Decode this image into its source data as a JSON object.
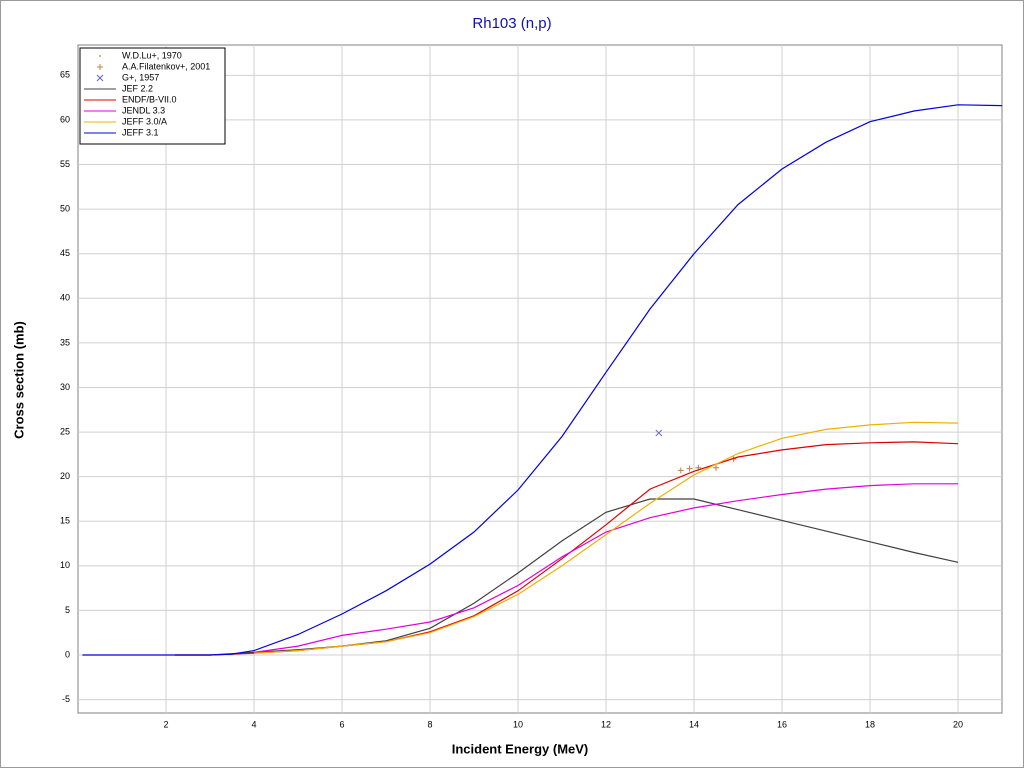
{
  "chart_data": {
    "type": "line",
    "title": "Rh103 (n,p)",
    "xlabel": "Incident Energy (MeV)",
    "ylabel": "Cross section (mb)",
    "xlim": [
      0,
      21
    ],
    "ylim": [
      -6.5,
      68.4
    ],
    "xticks": [
      2,
      4,
      6,
      8,
      10,
      12,
      14,
      16,
      18,
      20
    ],
    "yticks": [
      -5,
      0,
      5,
      10,
      15,
      20,
      25,
      30,
      35,
      40,
      45,
      50,
      55,
      60,
      65
    ],
    "grid": true,
    "legend": "upper left",
    "series": [
      {
        "name": "W.D.Lu+, 1970",
        "color": "#c8a070",
        "marker": "dot",
        "x": [],
        "values": []
      },
      {
        "name": "A.A.Filatenkov+, 2001",
        "color": "#c08040",
        "marker": "plus",
        "x": [
          13.7,
          13.9,
          14.1,
          14.5,
          14.9
        ],
        "values": [
          20.7,
          20.9,
          21.0,
          21.0,
          22.0
        ]
      },
      {
        "name": "G+, 1957",
        "color": "#6060c0",
        "marker": "cross",
        "x": [
          13.2
        ],
        "values": [
          24.9
        ]
      },
      {
        "name": "JEF 2.2",
        "color": "#404040",
        "x": [
          2.2,
          3,
          4,
          5,
          6,
          7,
          8,
          9,
          10,
          11,
          12,
          13,
          14,
          15,
          16,
          17,
          18,
          19,
          20
        ],
        "values": [
          0,
          0,
          0.3,
          0.6,
          1.0,
          1.6,
          3.0,
          5.8,
          9.2,
          12.8,
          16.0,
          17.5,
          17.5,
          16.3,
          15.1,
          13.9,
          12.7,
          11.5,
          10.4
        ]
      },
      {
        "name": "ENDF/B-VII.0",
        "color": "#e00000",
        "x": [
          2.2,
          3,
          4,
          5,
          6,
          7,
          8,
          9,
          10,
          11,
          12,
          13,
          14,
          15,
          16,
          17,
          18,
          19,
          20
        ],
        "values": [
          0,
          0,
          0.2,
          0.5,
          1.0,
          1.5,
          2.6,
          4.4,
          7.2,
          10.8,
          14.6,
          18.6,
          20.6,
          22.2,
          23.0,
          23.6,
          23.8,
          23.9,
          23.7
        ]
      },
      {
        "name": "JENDL 3.3",
        "color": "#e000e0",
        "x": [
          4,
          5,
          6,
          7,
          8,
          9,
          10,
          11,
          12,
          13,
          14,
          15,
          16,
          17,
          18,
          19,
          20
        ],
        "values": [
          0.3,
          1.0,
          2.2,
          2.9,
          3.7,
          5.3,
          7.8,
          11.0,
          13.8,
          15.4,
          16.5,
          17.3,
          18.0,
          18.6,
          19.0,
          19.2,
          19.2
        ]
      },
      {
        "name": "JEFF 3.0/A",
        "color": "#f0b000",
        "x": [
          4,
          5,
          6,
          7,
          8,
          9,
          10,
          11,
          12,
          13,
          14,
          15,
          16,
          17,
          18,
          19,
          20
        ],
        "values": [
          0.2,
          0.5,
          1.0,
          1.5,
          2.5,
          4.3,
          6.8,
          10.0,
          13.5,
          17.0,
          20.2,
          22.6,
          24.3,
          25.3,
          25.8,
          26.1,
          26.0
        ]
      },
      {
        "name": "JEFF 3.1",
        "color": "#0000e0",
        "x": [
          0.1,
          1,
          2,
          3,
          3.5,
          4,
          5,
          6,
          7,
          8,
          9,
          10,
          11,
          12,
          13,
          14,
          15,
          16,
          17,
          18,
          19,
          20,
          21
        ],
        "values": [
          0,
          0,
          0,
          0,
          0.1,
          0.5,
          2.3,
          4.6,
          7.2,
          10.2,
          13.8,
          18.5,
          24.5,
          31.7,
          38.8,
          45.0,
          50.5,
          54.5,
          57.5,
          59.8,
          61.0,
          61.7,
          61.6
        ]
      }
    ]
  }
}
